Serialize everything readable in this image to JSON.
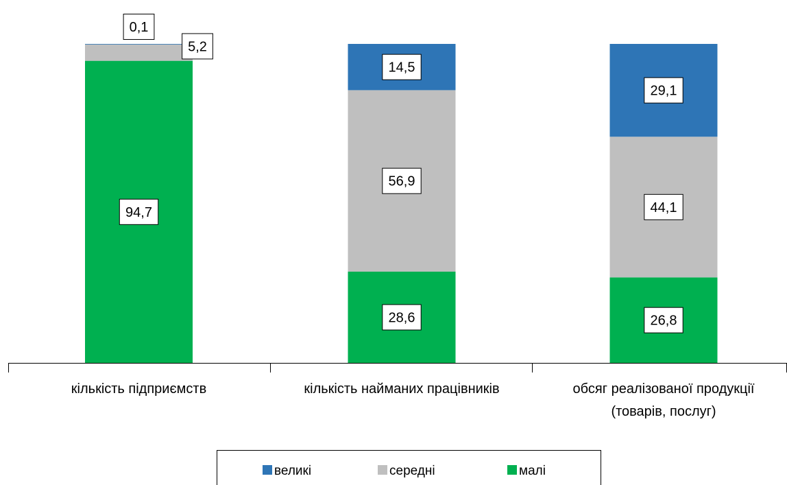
{
  "chart_data": {
    "type": "bar",
    "stacked": true,
    "categories": [
      [
        "кількість підприємств"
      ],
      [
        "кількість найманих працівників"
      ],
      [
        "обсяг реалізованої продукції",
        "(товарів, послуг)"
      ]
    ],
    "series": [
      {
        "name": "малі",
        "color": "#00b050",
        "values": [
          94.7,
          28.6,
          26.8
        ]
      },
      {
        "name": "середні",
        "color": "#bfbfbf",
        "values": [
          5.2,
          56.9,
          44.1
        ]
      },
      {
        "name": "великі",
        "color": "#2e75b6",
        "values": [
          0.1,
          14.5,
          29.1
        ]
      }
    ],
    "data_labels": [
      [
        "94,7",
        "28,6",
        "26,8"
      ],
      [
        "5,2",
        "56,9",
        "44,1"
      ],
      [
        "0,1",
        "14,5",
        "29,1"
      ]
    ],
    "legend_order": [
      "великі",
      "середні",
      "малі"
    ],
    "ylim": [
      0,
      100
    ],
    "grid": false,
    "legend_position": "bottom"
  }
}
